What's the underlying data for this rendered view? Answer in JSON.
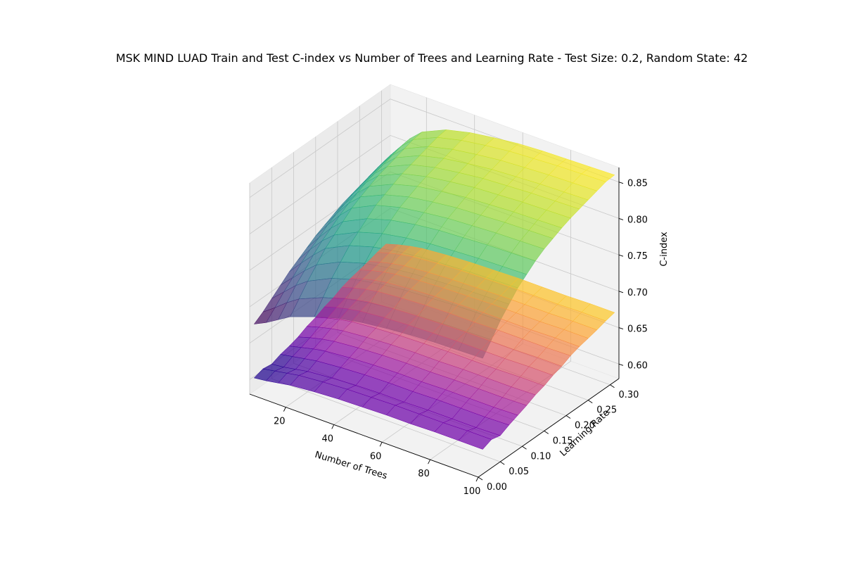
{
  "chart_data": {
    "type": "surface3d",
    "title": "MSK MIND LUAD Train and Test C-index vs Number of Trees and Learning Rate - Test Size: 0.2, Random State: 42",
    "xlabel": "Number of Trees",
    "ylabel": "Learning Rate",
    "zlabel": "C-index",
    "xlim": [
      5,
      100
    ],
    "ylim": [
      0.0,
      0.32
    ],
    "zlim": [
      0.58,
      0.87
    ],
    "x_ticks": [
      "20",
      "40",
      "60",
      "80",
      "100"
    ],
    "y_ticks": [
      "0.00",
      "0.05",
      "0.10",
      "0.15",
      "0.20",
      "0.25",
      "0.30"
    ],
    "z_ticks": [
      "0.60",
      "0.65",
      "0.70",
      "0.75",
      "0.80",
      "0.85"
    ],
    "grid": true,
    "x": [
      5,
      10,
      15,
      20,
      30,
      40,
      50,
      60,
      70,
      80,
      90,
      100
    ],
    "learning_rates": [
      0.01,
      0.03,
      0.05,
      0.07,
      0.09,
      0.11,
      0.13,
      0.15,
      0.17,
      0.19,
      0.21,
      0.23,
      0.25,
      0.27,
      0.29,
      0.31
    ],
    "series": [
      {
        "name": "",
        "colormap": "viridis",
        "values": [
          [
            0.672,
            0.68,
            0.69,
            0.7,
            0.712,
            0.722,
            0.728,
            0.732,
            0.735,
            0.737,
            0.738,
            0.739
          ],
          [
            0.68,
            0.692,
            0.705,
            0.716,
            0.73,
            0.74,
            0.746,
            0.75,
            0.752,
            0.754,
            0.755,
            0.756
          ],
          [
            0.69,
            0.705,
            0.72,
            0.732,
            0.748,
            0.758,
            0.764,
            0.768,
            0.77,
            0.772,
            0.773,
            0.774
          ],
          [
            0.7,
            0.716,
            0.732,
            0.746,
            0.762,
            0.772,
            0.778,
            0.782,
            0.784,
            0.786,
            0.787,
            0.788
          ],
          [
            0.71,
            0.728,
            0.745,
            0.76,
            0.776,
            0.786,
            0.792,
            0.796,
            0.798,
            0.8,
            0.801,
            0.802
          ],
          [
            0.718,
            0.738,
            0.756,
            0.77,
            0.786,
            0.796,
            0.802,
            0.806,
            0.808,
            0.81,
            0.811,
            0.812
          ],
          [
            0.726,
            0.746,
            0.765,
            0.78,
            0.796,
            0.806,
            0.812,
            0.816,
            0.818,
            0.82,
            0.821,
            0.822
          ],
          [
            0.734,
            0.755,
            0.774,
            0.79,
            0.806,
            0.815,
            0.82,
            0.824,
            0.826,
            0.828,
            0.829,
            0.83
          ],
          [
            0.74,
            0.762,
            0.782,
            0.797,
            0.812,
            0.821,
            0.826,
            0.83,
            0.832,
            0.834,
            0.835,
            0.836
          ],
          [
            0.746,
            0.768,
            0.788,
            0.803,
            0.818,
            0.827,
            0.832,
            0.836,
            0.838,
            0.84,
            0.841,
            0.842
          ],
          [
            0.752,
            0.774,
            0.794,
            0.809,
            0.824,
            0.832,
            0.837,
            0.841,
            0.843,
            0.845,
            0.846,
            0.847
          ],
          [
            0.756,
            0.778,
            0.798,
            0.813,
            0.828,
            0.836,
            0.841,
            0.845,
            0.847,
            0.849,
            0.85,
            0.851
          ],
          [
            0.76,
            0.782,
            0.802,
            0.817,
            0.832,
            0.84,
            0.845,
            0.849,
            0.851,
            0.853,
            0.854,
            0.855
          ],
          [
            0.764,
            0.786,
            0.806,
            0.821,
            0.836,
            0.844,
            0.849,
            0.853,
            0.855,
            0.857,
            0.858,
            0.859
          ],
          [
            0.768,
            0.79,
            0.81,
            0.825,
            0.84,
            0.848,
            0.853,
            0.857,
            0.859,
            0.861,
            0.862,
            0.863
          ],
          [
            0.77,
            0.792,
            0.812,
            0.827,
            0.842,
            0.85,
            0.855,
            0.859,
            0.861,
            0.862,
            0.863,
            0.864
          ]
        ]
      },
      {
        "name": "",
        "colormap": "plasma",
        "values": [
          [
            0.598,
            0.6,
            0.603,
            0.606,
            0.609,
            0.611,
            0.612,
            0.613,
            0.613,
            0.614,
            0.614,
            0.614
          ],
          [
            0.602,
            0.605,
            0.608,
            0.611,
            0.614,
            0.616,
            0.617,
            0.618,
            0.618,
            0.618,
            0.619,
            0.619
          ],
          [
            0.6,
            0.602,
            0.605,
            0.608,
            0.611,
            0.613,
            0.614,
            0.614,
            0.615,
            0.615,
            0.615,
            0.616
          ],
          [
            0.605,
            0.608,
            0.611,
            0.614,
            0.617,
            0.619,
            0.62,
            0.62,
            0.621,
            0.621,
            0.621,
            0.622
          ],
          [
            0.608,
            0.612,
            0.616,
            0.619,
            0.622,
            0.624,
            0.625,
            0.625,
            0.626,
            0.626,
            0.626,
            0.627
          ],
          [
            0.612,
            0.617,
            0.621,
            0.624,
            0.627,
            0.629,
            0.63,
            0.63,
            0.631,
            0.631,
            0.631,
            0.632
          ],
          [
            0.618,
            0.623,
            0.627,
            0.63,
            0.633,
            0.635,
            0.636,
            0.636,
            0.637,
            0.637,
            0.637,
            0.638
          ],
          [
            0.622,
            0.627,
            0.631,
            0.634,
            0.637,
            0.639,
            0.64,
            0.641,
            0.641,
            0.641,
            0.642,
            0.642
          ],
          [
            0.628,
            0.633,
            0.637,
            0.64,
            0.643,
            0.645,
            0.646,
            0.647,
            0.647,
            0.647,
            0.648,
            0.648
          ],
          [
            0.632,
            0.637,
            0.641,
            0.644,
            0.647,
            0.649,
            0.65,
            0.651,
            0.651,
            0.651,
            0.652,
            0.652
          ],
          [
            0.638,
            0.643,
            0.647,
            0.65,
            0.653,
            0.655,
            0.656,
            0.656,
            0.657,
            0.657,
            0.657,
            0.658
          ],
          [
            0.642,
            0.647,
            0.651,
            0.654,
            0.657,
            0.659,
            0.66,
            0.661,
            0.661,
            0.661,
            0.662,
            0.662
          ],
          [
            0.645,
            0.65,
            0.654,
            0.657,
            0.66,
            0.662,
            0.663,
            0.664,
            0.664,
            0.664,
            0.665,
            0.665
          ],
          [
            0.648,
            0.653,
            0.657,
            0.66,
            0.663,
            0.665,
            0.666,
            0.667,
            0.667,
            0.667,
            0.668,
            0.668
          ],
          [
            0.652,
            0.657,
            0.661,
            0.664,
            0.667,
            0.669,
            0.67,
            0.671,
            0.671,
            0.671,
            0.672,
            0.672
          ],
          [
            0.655,
            0.66,
            0.664,
            0.667,
            0.67,
            0.672,
            0.673,
            0.674,
            0.674,
            0.674,
            0.675,
            0.675
          ]
        ]
      }
    ]
  }
}
